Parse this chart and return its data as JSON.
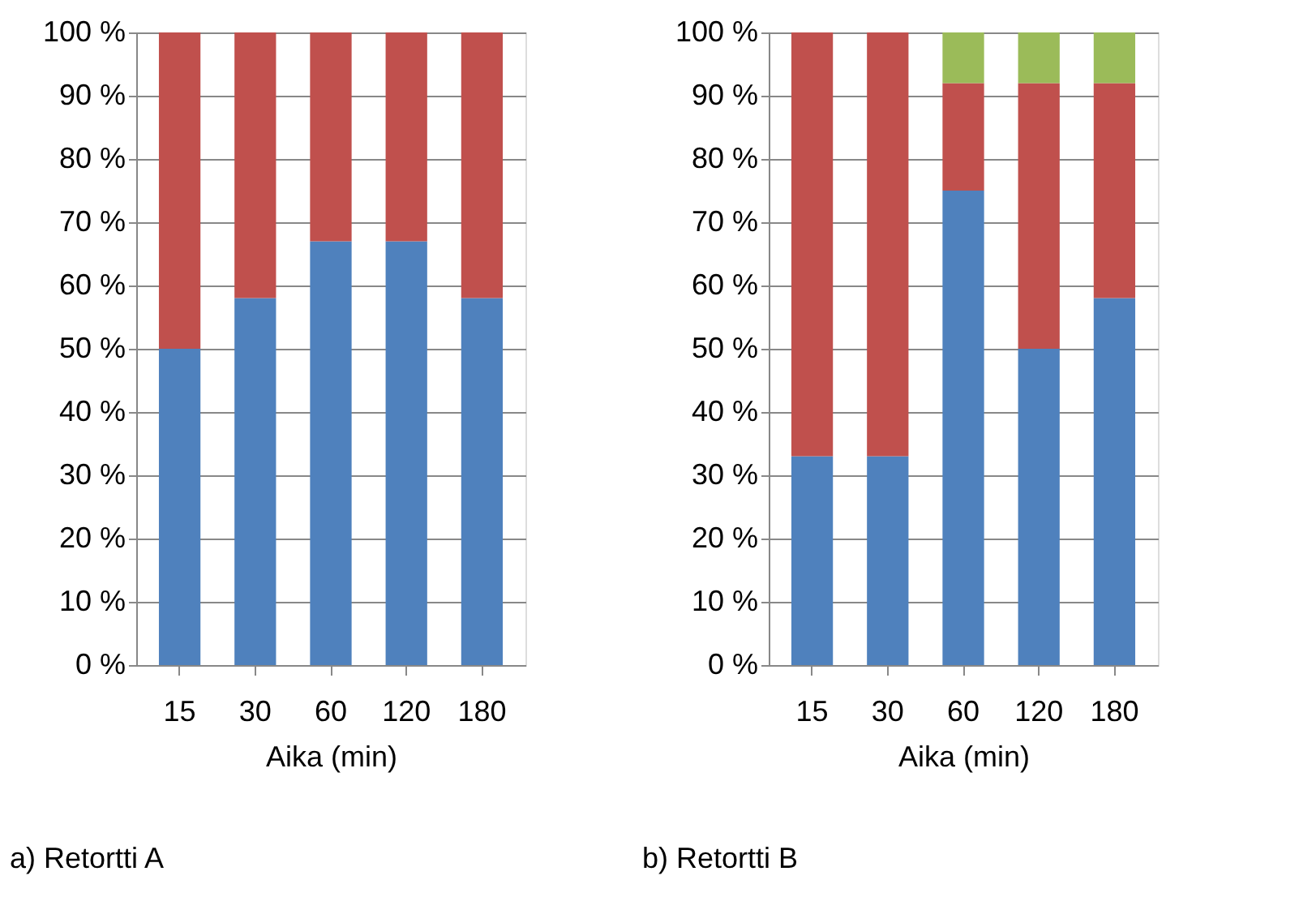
{
  "chart_data": [
    {
      "type": "bar",
      "stacked": true,
      "xlabel": "Aika (min)",
      "categories": [
        "15",
        "30",
        "60",
        "120",
        "180"
      ],
      "series": [
        {
          "color": "#4f81bd",
          "values": [
            50,
            58,
            67,
            67,
            58
          ]
        },
        {
          "color": "#c0504d",
          "values": [
            50,
            42,
            33,
            33,
            42
          ]
        }
      ],
      "ylim": [
        0,
        100
      ],
      "yticks": [
        {
          "value": 0,
          "label": "0 %"
        },
        {
          "value": 10,
          "label": "10 %"
        },
        {
          "value": 20,
          "label": "20 %"
        },
        {
          "value": 30,
          "label": "30 %"
        },
        {
          "value": 40,
          "label": "40 %"
        },
        {
          "value": 50,
          "label": "50 %"
        },
        {
          "value": 60,
          "label": "60 %"
        },
        {
          "value": 70,
          "label": "70 %"
        },
        {
          "value": 80,
          "label": "80 %"
        },
        {
          "value": 90,
          "label": "90 %"
        },
        {
          "value": 100,
          "label": "100 %"
        }
      ],
      "grid": "y",
      "legend": false,
      "annotations": [
        "a) Retortti A"
      ]
    },
    {
      "type": "bar",
      "stacked": true,
      "xlabel": "Aika (min)",
      "categories": [
        "15",
        "30",
        "60",
        "120",
        "180"
      ],
      "series": [
        {
          "color": "#4f81bd",
          "values": [
            33,
            33,
            75,
            50,
            58
          ]
        },
        {
          "color": "#c0504d",
          "values": [
            67,
            67,
            17,
            42,
            34
          ]
        },
        {
          "color": "#9bbb59",
          "values": [
            0,
            0,
            8,
            8,
            8
          ]
        }
      ],
      "ylim": [
        0,
        100
      ],
      "yticks": [
        {
          "value": 0,
          "label": "0 %"
        },
        {
          "value": 10,
          "label": "10 %"
        },
        {
          "value": 20,
          "label": "20 %"
        },
        {
          "value": 30,
          "label": "30 %"
        },
        {
          "value": 40,
          "label": "40 %"
        },
        {
          "value": 50,
          "label": "50 %"
        },
        {
          "value": 60,
          "label": "60 %"
        },
        {
          "value": 70,
          "label": "70 %"
        },
        {
          "value": 80,
          "label": "80 %"
        },
        {
          "value": 90,
          "label": "90 %"
        },
        {
          "value": 100,
          "label": "100 %"
        }
      ],
      "grid": "y",
      "legend": false,
      "annotations": [
        "b) Retortti B"
      ]
    }
  ]
}
